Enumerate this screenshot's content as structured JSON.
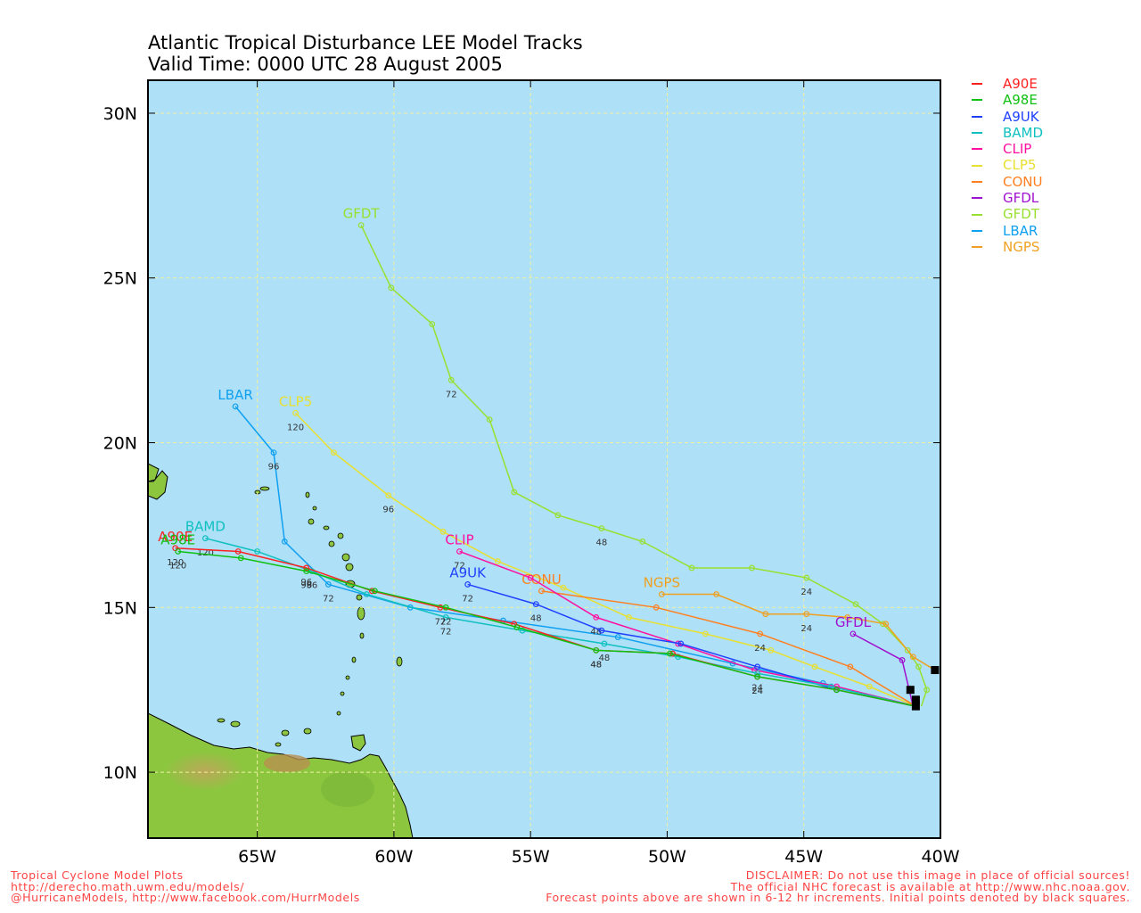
{
  "title": {
    "line1": "Atlantic Tropical Disturbance LEE Model Tracks",
    "line2": "Valid Time: 0000 UTC 28 August 2005"
  },
  "map": {
    "lon_range": [
      -69,
      -40
    ],
    "lat_range": [
      8,
      31
    ],
    "ocean_color": "#aee0f8",
    "land_color": "#8cc63f",
    "grid": true,
    "lat_ticks": [
      {
        "label": "30N",
        "lat": 30
      },
      {
        "label": "25N",
        "lat": 25
      },
      {
        "label": "20N",
        "lat": 20
      },
      {
        "label": "15N",
        "lat": 15
      },
      {
        "label": "10N",
        "lat": 10
      }
    ],
    "lon_ticks": [
      {
        "label": "65W",
        "lon": -65
      },
      {
        "label": "60W",
        "lon": -60
      },
      {
        "label": "55W",
        "lon": -55
      },
      {
        "label": "50W",
        "lon": -50
      },
      {
        "label": "45W",
        "lon": -45
      },
      {
        "label": "40W",
        "lon": -40
      }
    ]
  },
  "legend": [
    {
      "name": "A90E",
      "color": "#ff2020"
    },
    {
      "name": "A98E",
      "color": "#10c010"
    },
    {
      "name": "A9UK",
      "color": "#2040ff"
    },
    {
      "name": "BAMD",
      "color": "#10c0c0"
    },
    {
      "name": "CLIP",
      "color": "#ff10a0"
    },
    {
      "name": "CLP5",
      "color": "#e8e030"
    },
    {
      "name": "CONU",
      "color": "#ff8020"
    },
    {
      "name": "GFDL",
      "color": "#a010d0"
    },
    {
      "name": "GFDT",
      "color": "#98e030"
    },
    {
      "name": "LBAR",
      "color": "#10a0f0"
    },
    {
      "name": "NGPS",
      "color": "#f0a020"
    }
  ],
  "tracks": [
    {
      "name": "GFDT",
      "color": "#98e030",
      "label": "GFDT",
      "points": [
        [
          -40.7,
          12.0
        ],
        [
          -40.5,
          12.5
        ],
        [
          -40.8,
          13.2
        ],
        [
          -41.2,
          13.7
        ],
        [
          -42.1,
          14.5
        ],
        [
          -43.1,
          15.1
        ],
        [
          -44.9,
          15.9
        ],
        [
          -46.9,
          16.2
        ],
        [
          -49.1,
          16.2
        ],
        [
          -50.9,
          17.0
        ],
        [
          -52.4,
          17.4
        ],
        [
          -54.0,
          17.8
        ],
        [
          -55.6,
          18.5
        ],
        [
          -56.5,
          20.7
        ],
        [
          -57.9,
          21.9
        ],
        [
          -58.6,
          23.6
        ],
        [
          -60.1,
          24.7
        ],
        [
          -61.2,
          26.6
        ]
      ],
      "marks": [
        {
          "text": "24",
          "at": [
            -44.9,
            15.6
          ]
        },
        {
          "text": "48",
          "at": [
            -52.4,
            17.1
          ]
        },
        {
          "text": "72",
          "at": [
            -57.9,
            21.6
          ]
        }
      ]
    },
    {
      "name": "CLP5",
      "color": "#e8e030",
      "label": "CLP5",
      "points": [
        [
          -40.9,
          12.0
        ],
        [
          -42.6,
          12.6
        ],
        [
          -44.6,
          13.2
        ],
        [
          -46.2,
          13.7
        ],
        [
          -48.6,
          14.2
        ],
        [
          -51.4,
          14.7
        ],
        [
          -53.8,
          15.6
        ],
        [
          -56.2,
          16.4
        ],
        [
          -58.2,
          17.3
        ],
        [
          -60.2,
          18.4
        ],
        [
          -62.2,
          19.7
        ],
        [
          -63.6,
          20.9
        ]
      ],
      "marks": [
        {
          "text": "96",
          "at": [
            -60.2,
            18.1
          ]
        },
        {
          "text": "120",
          "at": [
            -63.6,
            20.6
          ]
        }
      ]
    },
    {
      "name": "LBAR",
      "color": "#10a0f0",
      "label": "LBAR",
      "points": [
        [
          -40.9,
          12.0
        ],
        [
          -44.3,
          12.7
        ],
        [
          -47.6,
          13.3
        ],
        [
          -51.8,
          14.1
        ],
        [
          -56.0,
          14.6
        ],
        [
          -59.4,
          15.0
        ],
        [
          -62.4,
          15.7
        ],
        [
          -64.0,
          17.0
        ],
        [
          -64.4,
          19.7
        ],
        [
          -65.8,
          21.1
        ]
      ],
      "marks": [
        {
          "text": "72",
          "at": [
            -62.4,
            15.4
          ]
        },
        {
          "text": "96",
          "at": [
            -64.4,
            19.4
          ]
        }
      ]
    },
    {
      "name": "NGPS",
      "color": "#f0a020",
      "label": "NGPS",
      "points": [
        [
          -40.2,
          13.1
        ],
        [
          -41.0,
          13.5
        ],
        [
          -42.0,
          14.5
        ],
        [
          -43.4,
          14.7
        ],
        [
          -44.9,
          14.8
        ],
        [
          -46.4,
          14.8
        ],
        [
          -48.2,
          15.4
        ],
        [
          -50.2,
          15.4
        ]
      ],
      "marks": [
        {
          "text": "24",
          "at": [
            -44.9,
            14.5
          ]
        }
      ]
    },
    {
      "name": "CONU",
      "color": "#ff8020",
      "label": "CONU",
      "points": [
        [
          -40.9,
          12.0
        ],
        [
          -43.3,
          13.2
        ],
        [
          -46.6,
          14.2
        ],
        [
          -50.4,
          15.0
        ],
        [
          -54.6,
          15.5
        ]
      ],
      "marks": [
        {
          "text": "24",
          "at": [
            -46.6,
            13.9
          ]
        }
      ]
    },
    {
      "name": "GFDL",
      "color": "#a010d0",
      "label": "GFDL",
      "points": [
        [
          -41.0,
          12.0
        ],
        [
          -41.4,
          13.4
        ],
        [
          -43.2,
          14.2
        ]
      ],
      "marks": []
    },
    {
      "name": "CLIP",
      "color": "#ff10a0",
      "label": "CLIP",
      "points": [
        [
          -40.9,
          12.0
        ],
        [
          -43.8,
          12.6
        ],
        [
          -46.8,
          13.1
        ],
        [
          -49.6,
          13.9
        ],
        [
          -52.6,
          14.7
        ],
        [
          -55.0,
          15.9
        ],
        [
          -57.6,
          16.7
        ]
      ],
      "marks": [
        {
          "text": "48",
          "at": [
            -52.6,
            14.4
          ]
        },
        {
          "text": "72",
          "at": [
            -57.6,
            16.4
          ]
        }
      ]
    },
    {
      "name": "A9UK",
      "color": "#2040ff",
      "label": "A9UK",
      "points": [
        [
          -40.9,
          12.0
        ],
        [
          -43.8,
          12.5
        ],
        [
          -46.7,
          13.2
        ],
        [
          -49.5,
          13.9
        ],
        [
          -52.4,
          14.3
        ],
        [
          -54.8,
          15.1
        ],
        [
          -57.3,
          15.7
        ]
      ],
      "marks": [
        {
          "text": "48",
          "at": [
            -54.8,
            14.8
          ]
        },
        {
          "text": "72",
          "at": [
            -57.3,
            15.4
          ]
        }
      ]
    },
    {
      "name": "BAMD",
      "color": "#10c0c0",
      "label": "BAMD",
      "points": [
        [
          -40.9,
          12.0
        ],
        [
          -44.0,
          12.6
        ],
        [
          -46.7,
          13.0
        ],
        [
          -49.6,
          13.5
        ],
        [
          -52.3,
          13.9
        ],
        [
          -55.3,
          14.3
        ],
        [
          -58.1,
          14.7
        ],
        [
          -61.0,
          15.4
        ],
        [
          -63.0,
          16.1
        ],
        [
          -65.0,
          16.7
        ],
        [
          -66.9,
          17.1
        ]
      ],
      "marks": [
        {
          "text": "24",
          "at": [
            -46.7,
            12.7
          ]
        },
        {
          "text": "48",
          "at": [
            -52.3,
            13.6
          ]
        },
        {
          "text": "72",
          "at": [
            -58.1,
            14.4
          ]
        },
        {
          "text": "96",
          "at": [
            -63.0,
            15.8
          ]
        },
        {
          "text": "120",
          "at": [
            -66.9,
            16.8
          ]
        }
      ]
    },
    {
      "name": "A90E",
      "color": "#ff2020",
      "label": "A90E",
      "points": [
        [
          -40.9,
          12.0
        ],
        [
          -43.8,
          12.5
        ],
        [
          -46.7,
          12.9
        ],
        [
          -49.8,
          13.6
        ],
        [
          -52.6,
          13.7
        ],
        [
          -55.6,
          14.5
        ],
        [
          -58.3,
          15.0
        ],
        [
          -60.8,
          15.5
        ],
        [
          -63.2,
          16.2
        ],
        [
          -65.7,
          16.7
        ],
        [
          -68.0,
          16.8
        ]
      ],
      "marks": [
        {
          "text": "24",
          "at": [
            -46.7,
            12.6
          ]
        },
        {
          "text": "48",
          "at": [
            -52.6,
            13.4
          ]
        },
        {
          "text": "72",
          "at": [
            -58.3,
            14.7
          ]
        },
        {
          "text": "96",
          "at": [
            -63.2,
            15.9
          ]
        },
        {
          "text": "120",
          "at": [
            -68.0,
            16.5
          ]
        }
      ]
    },
    {
      "name": "A98E",
      "color": "#10c010",
      "label": "A98E",
      "points": [
        [
          -40.9,
          12.0
        ],
        [
          -43.8,
          12.5
        ],
        [
          -46.7,
          12.9
        ],
        [
          -49.9,
          13.6
        ],
        [
          -52.6,
          13.7
        ],
        [
          -55.5,
          14.4
        ],
        [
          -58.1,
          15.0
        ],
        [
          -60.7,
          15.5
        ],
        [
          -63.2,
          16.1
        ],
        [
          -65.6,
          16.5
        ],
        [
          -67.9,
          16.7
        ]
      ],
      "marks": [
        {
          "text": "24",
          "at": [
            -46.7,
            12.6
          ]
        },
        {
          "text": "48",
          "at": [
            -52.6,
            13.4
          ]
        },
        {
          "text": "72",
          "at": [
            -58.1,
            14.7
          ]
        },
        {
          "text": "96",
          "at": [
            -63.2,
            15.8
          ]
        },
        {
          "text": "120",
          "at": [
            -67.9,
            16.4
          ]
        }
      ]
    }
  ],
  "initial_points": [
    [
      -40.9,
      12.0
    ],
    [
      -41.1,
      12.5
    ],
    [
      -40.9,
      12.2
    ],
    [
      -40.2,
      13.1
    ]
  ],
  "footer": {
    "left": [
      "Tropical Cyclone Model Plots",
      "http://derecho.math.uwm.edu/models/",
      "@HurricaneModels, http://www.facebook.com/HurrModels"
    ],
    "right": [
      "DISCLAIMER: Do not use this image in place of official sources!",
      "The official NHC forecast is available at http://www.nhc.noaa.gov.",
      "Forecast points above are shown in 6-12 hr increments. Initial points denoted by black squares."
    ]
  }
}
